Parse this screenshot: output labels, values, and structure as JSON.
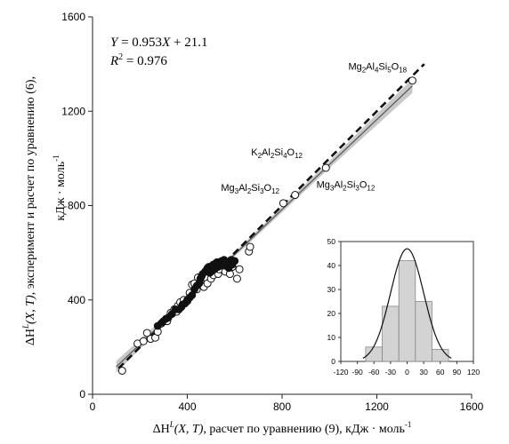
{
  "chart_data": [
    {
      "type": "scatter",
      "title": "",
      "xlabel_parts": [
        "ΔH",
        "L",
        "(X, T)",
        ", расчет по уравнению (9), кДж · моль",
        "-1"
      ],
      "ylabel_line1_parts": [
        "ΔH",
        "L",
        "(X, T)",
        ", эксперимент и расчет по уравнению (6),"
      ],
      "ylabel_line2_parts": [
        "кДж · моль",
        "-1"
      ],
      "xlim": [
        0,
        1600
      ],
      "ylim": [
        0,
        1600
      ],
      "xticks": [
        0,
        400,
        800,
        1200,
        1600
      ],
      "yticks": [
        0,
        400,
        800,
        1200,
        1600
      ],
      "grid": false,
      "equation_parts": [
        "Y",
        " = 0.953",
        "X",
        " + 21.1"
      ],
      "r2_parts": [
        "R",
        "2",
        " = 0.976"
      ],
      "regression": {
        "slope": 0.953,
        "intercept": 21.1,
        "x_range": [
          100,
          1350
        ]
      },
      "identity_line": {
        "x_range": [
          110,
          1400
        ]
      },
      "confidence_band": {
        "x": [
          100,
          500,
          1000,
          1350
        ],
        "halfwidth": [
          25,
          8,
          15,
          30
        ]
      },
      "annotations": [
        {
          "parts": [
            [
              "Mg",
              ""
            ],
            [
              "2",
              "sub"
            ],
            [
              "Al",
              ""
            ],
            [
              "4",
              "sub"
            ],
            [
              "Si",
              ""
            ],
            [
              "5",
              "sub"
            ],
            [
              "O",
              ""
            ],
            [
              "18",
              "sub"
            ]
          ],
          "x": 1350,
          "y": 1330
        },
        {
          "parts": [
            [
              "K",
              ""
            ],
            [
              "2",
              "sub"
            ],
            [
              "Al",
              ""
            ],
            [
              "2",
              "sub"
            ],
            [
              "Si",
              ""
            ],
            [
              "4",
              "sub"
            ],
            [
              "O",
              ""
            ],
            [
              "12",
              "sub"
            ]
          ],
          "x": 985,
          "y": 960
        },
        {
          "parts": [
            [
              "Mg",
              ""
            ],
            [
              "3",
              "sub"
            ],
            [
              "Al",
              ""
            ],
            [
              "2",
              "sub"
            ],
            [
              "Si",
              ""
            ],
            [
              "3",
              "sub"
            ],
            [
              "O",
              ""
            ],
            [
              "12",
              "sub"
            ]
          ],
          "x": 805,
          "y": 810
        },
        {
          "parts": [
            [
              "Mg",
              ""
            ],
            [
              "3",
              "sub"
            ],
            [
              "Al",
              ""
            ],
            [
              "2",
              "sub"
            ],
            [
              "Si",
              ""
            ],
            [
              "3",
              "sub"
            ],
            [
              "O",
              ""
            ],
            [
              "12",
              "sub"
            ]
          ],
          "x": 855,
          "y": 845
        }
      ],
      "series": [
        {
          "marker": "open-circle",
          "points": [
            [
              125,
              100
            ],
            [
              190,
              215
            ],
            [
              215,
              225
            ],
            [
              230,
              260
            ],
            [
              245,
              235
            ],
            [
              265,
              240
            ],
            [
              275,
              265
            ],
            [
              290,
              300
            ],
            [
              300,
              310
            ],
            [
              315,
              310
            ],
            [
              330,
              345
            ],
            [
              345,
              360
            ],
            [
              355,
              350
            ],
            [
              360,
              375
            ],
            [
              370,
              390
            ],
            [
              385,
              400
            ],
            [
              400,
              395
            ],
            [
              410,
              430
            ],
            [
              420,
              465
            ],
            [
              430,
              470
            ],
            [
              440,
              445
            ],
            [
              445,
              495
            ],
            [
              455,
              480
            ],
            [
              470,
              455
            ],
            [
              485,
              470
            ],
            [
              500,
              490
            ],
            [
              510,
              505
            ],
            [
              530,
              510
            ],
            [
              535,
              530
            ],
            [
              560,
              520
            ],
            [
              580,
              510
            ],
            [
              590,
              540
            ],
            [
              610,
              490
            ],
            [
              620,
              530
            ],
            [
              660,
              605
            ],
            [
              665,
              625
            ],
            [
              805,
              810
            ],
            [
              855,
              845
            ],
            [
              985,
              960
            ],
            [
              1350,
              1330
            ]
          ]
        },
        {
          "marker": "filled-circle",
          "points": [
            [
              275,
              290
            ],
            [
              295,
              305
            ],
            [
              310,
              320
            ],
            [
              320,
              325
            ],
            [
              335,
              340
            ],
            [
              350,
              360
            ],
            [
              365,
              360
            ],
            [
              375,
              370
            ],
            [
              380,
              380
            ],
            [
              390,
              385
            ],
            [
              400,
              400
            ],
            [
              410,
              410
            ],
            [
              420,
              420
            ],
            [
              430,
              445
            ],
            [
              440,
              460
            ],
            [
              450,
              470
            ],
            [
              455,
              490
            ],
            [
              460,
              500
            ],
            [
              465,
              510
            ],
            [
              475,
              520
            ],
            [
              480,
              525
            ],
            [
              485,
              535
            ],
            [
              490,
              540
            ],
            [
              495,
              515
            ],
            [
              500,
              520
            ],
            [
              505,
              545
            ],
            [
              510,
              550
            ],
            [
              515,
              530
            ],
            [
              520,
              555
            ],
            [
              525,
              560
            ],
            [
              530,
              540
            ],
            [
              535,
              560
            ],
            [
              540,
              545
            ],
            [
              545,
              565
            ],
            [
              550,
              550
            ],
            [
              555,
              570
            ],
            [
              560,
              545
            ],
            [
              565,
              555
            ],
            [
              570,
              560
            ],
            [
              575,
              535
            ],
            [
              580,
              560
            ],
            [
              585,
              570
            ],
            [
              590,
              550
            ],
            [
              600,
              565
            ]
          ]
        }
      ]
    },
    {
      "type": "bar",
      "title": "",
      "categories": [
        -60,
        -30,
        0,
        30,
        60
      ],
      "values": [
        6,
        23,
        42,
        25,
        5
      ],
      "bin_width": 30,
      "xlim": [
        -120,
        120
      ],
      "ylim": [
        0,
        50
      ],
      "xticks": [
        -120,
        -90,
        -60,
        -30,
        0,
        30,
        60,
        90,
        120
      ],
      "yticks": [
        0,
        10,
        20,
        30,
        40,
        50
      ],
      "normal_curve": {
        "mean": 0,
        "sd": 30,
        "peak": 47
      },
      "grid": false
    }
  ]
}
